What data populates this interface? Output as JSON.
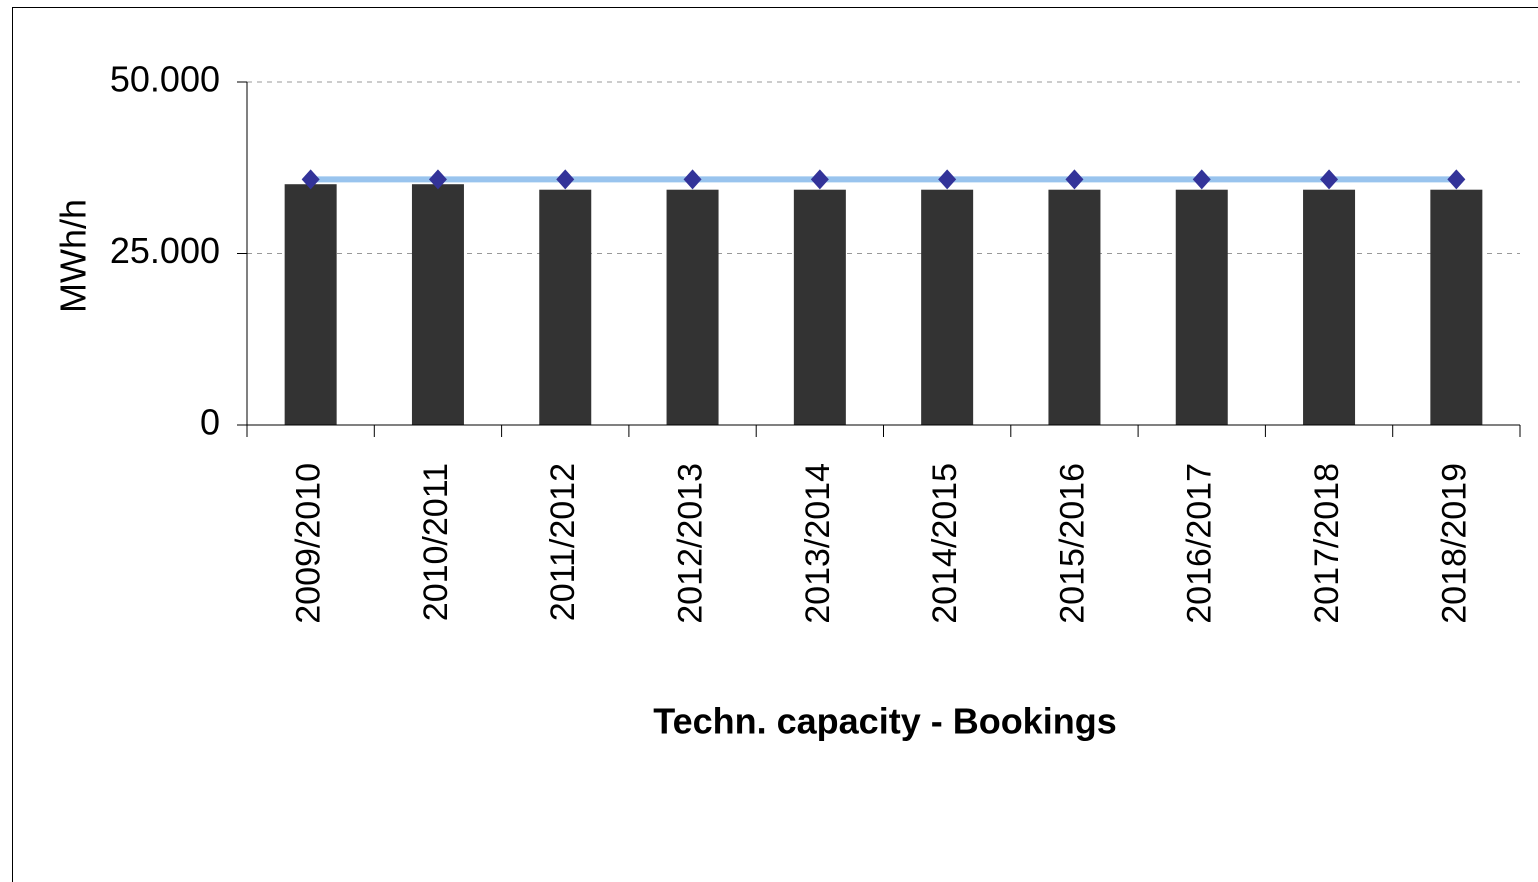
{
  "chart_data": {
    "type": "bar",
    "x_label": "Techn. capacity - Bookings",
    "y_label": "MWh/h",
    "categories": [
      "2009/2010",
      "2010/2011",
      "2011/2012",
      "2012/2013",
      "2013/2014",
      "2014/2015",
      "2015/2016",
      "2016/2017",
      "2017/2018",
      "2018/2019"
    ],
    "series": [
      {
        "type": "bar",
        "color": "#333333",
        "values": [
          35100,
          35100,
          34300,
          34300,
          34300,
          34300,
          34300,
          34300,
          34300,
          34300
        ]
      },
      {
        "type": "line",
        "color": "#99c4ee",
        "marker_color": "#333399",
        "values": [
          35800,
          35800,
          35800,
          35800,
          35800,
          35800,
          35800,
          35800,
          35800,
          35800
        ]
      }
    ],
    "ylim": [
      0,
      50000
    ],
    "yticks": [
      0,
      {
        "value": 25000,
        "label": "25.000"
      },
      {
        "value": 50000,
        "label": "50.000"
      }
    ],
    "grid": true
  }
}
